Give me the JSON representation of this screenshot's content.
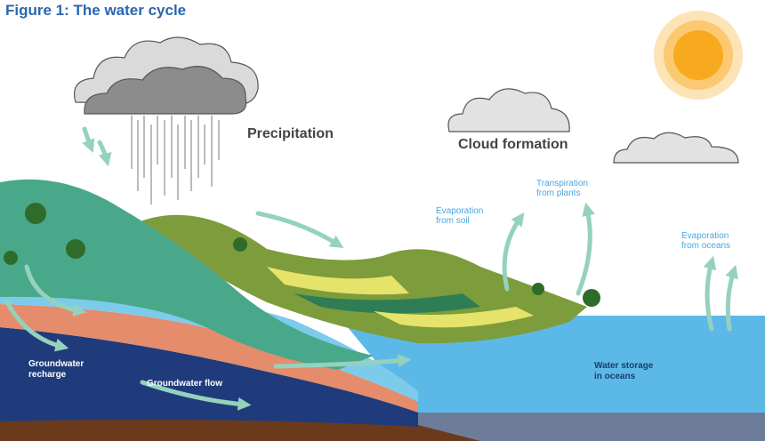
{
  "header": {
    "title": "Figure 1: The water cycle"
  },
  "labels": {
    "precipitation": "Precipitation",
    "cloud_formation": "Cloud formation",
    "evaporation_soil": [
      "Evaporation",
      "from soil"
    ],
    "transpiration": [
      "Transpiration",
      "from plants"
    ],
    "evaporation_oceans": [
      "Evaporation",
      "from oceans"
    ],
    "groundwater_recharge": [
      "Groundwater",
      "recharge"
    ],
    "groundwater_flow": "Groundwater flow",
    "water_storage": [
      "Water storage",
      "in oceans"
    ]
  }
}
